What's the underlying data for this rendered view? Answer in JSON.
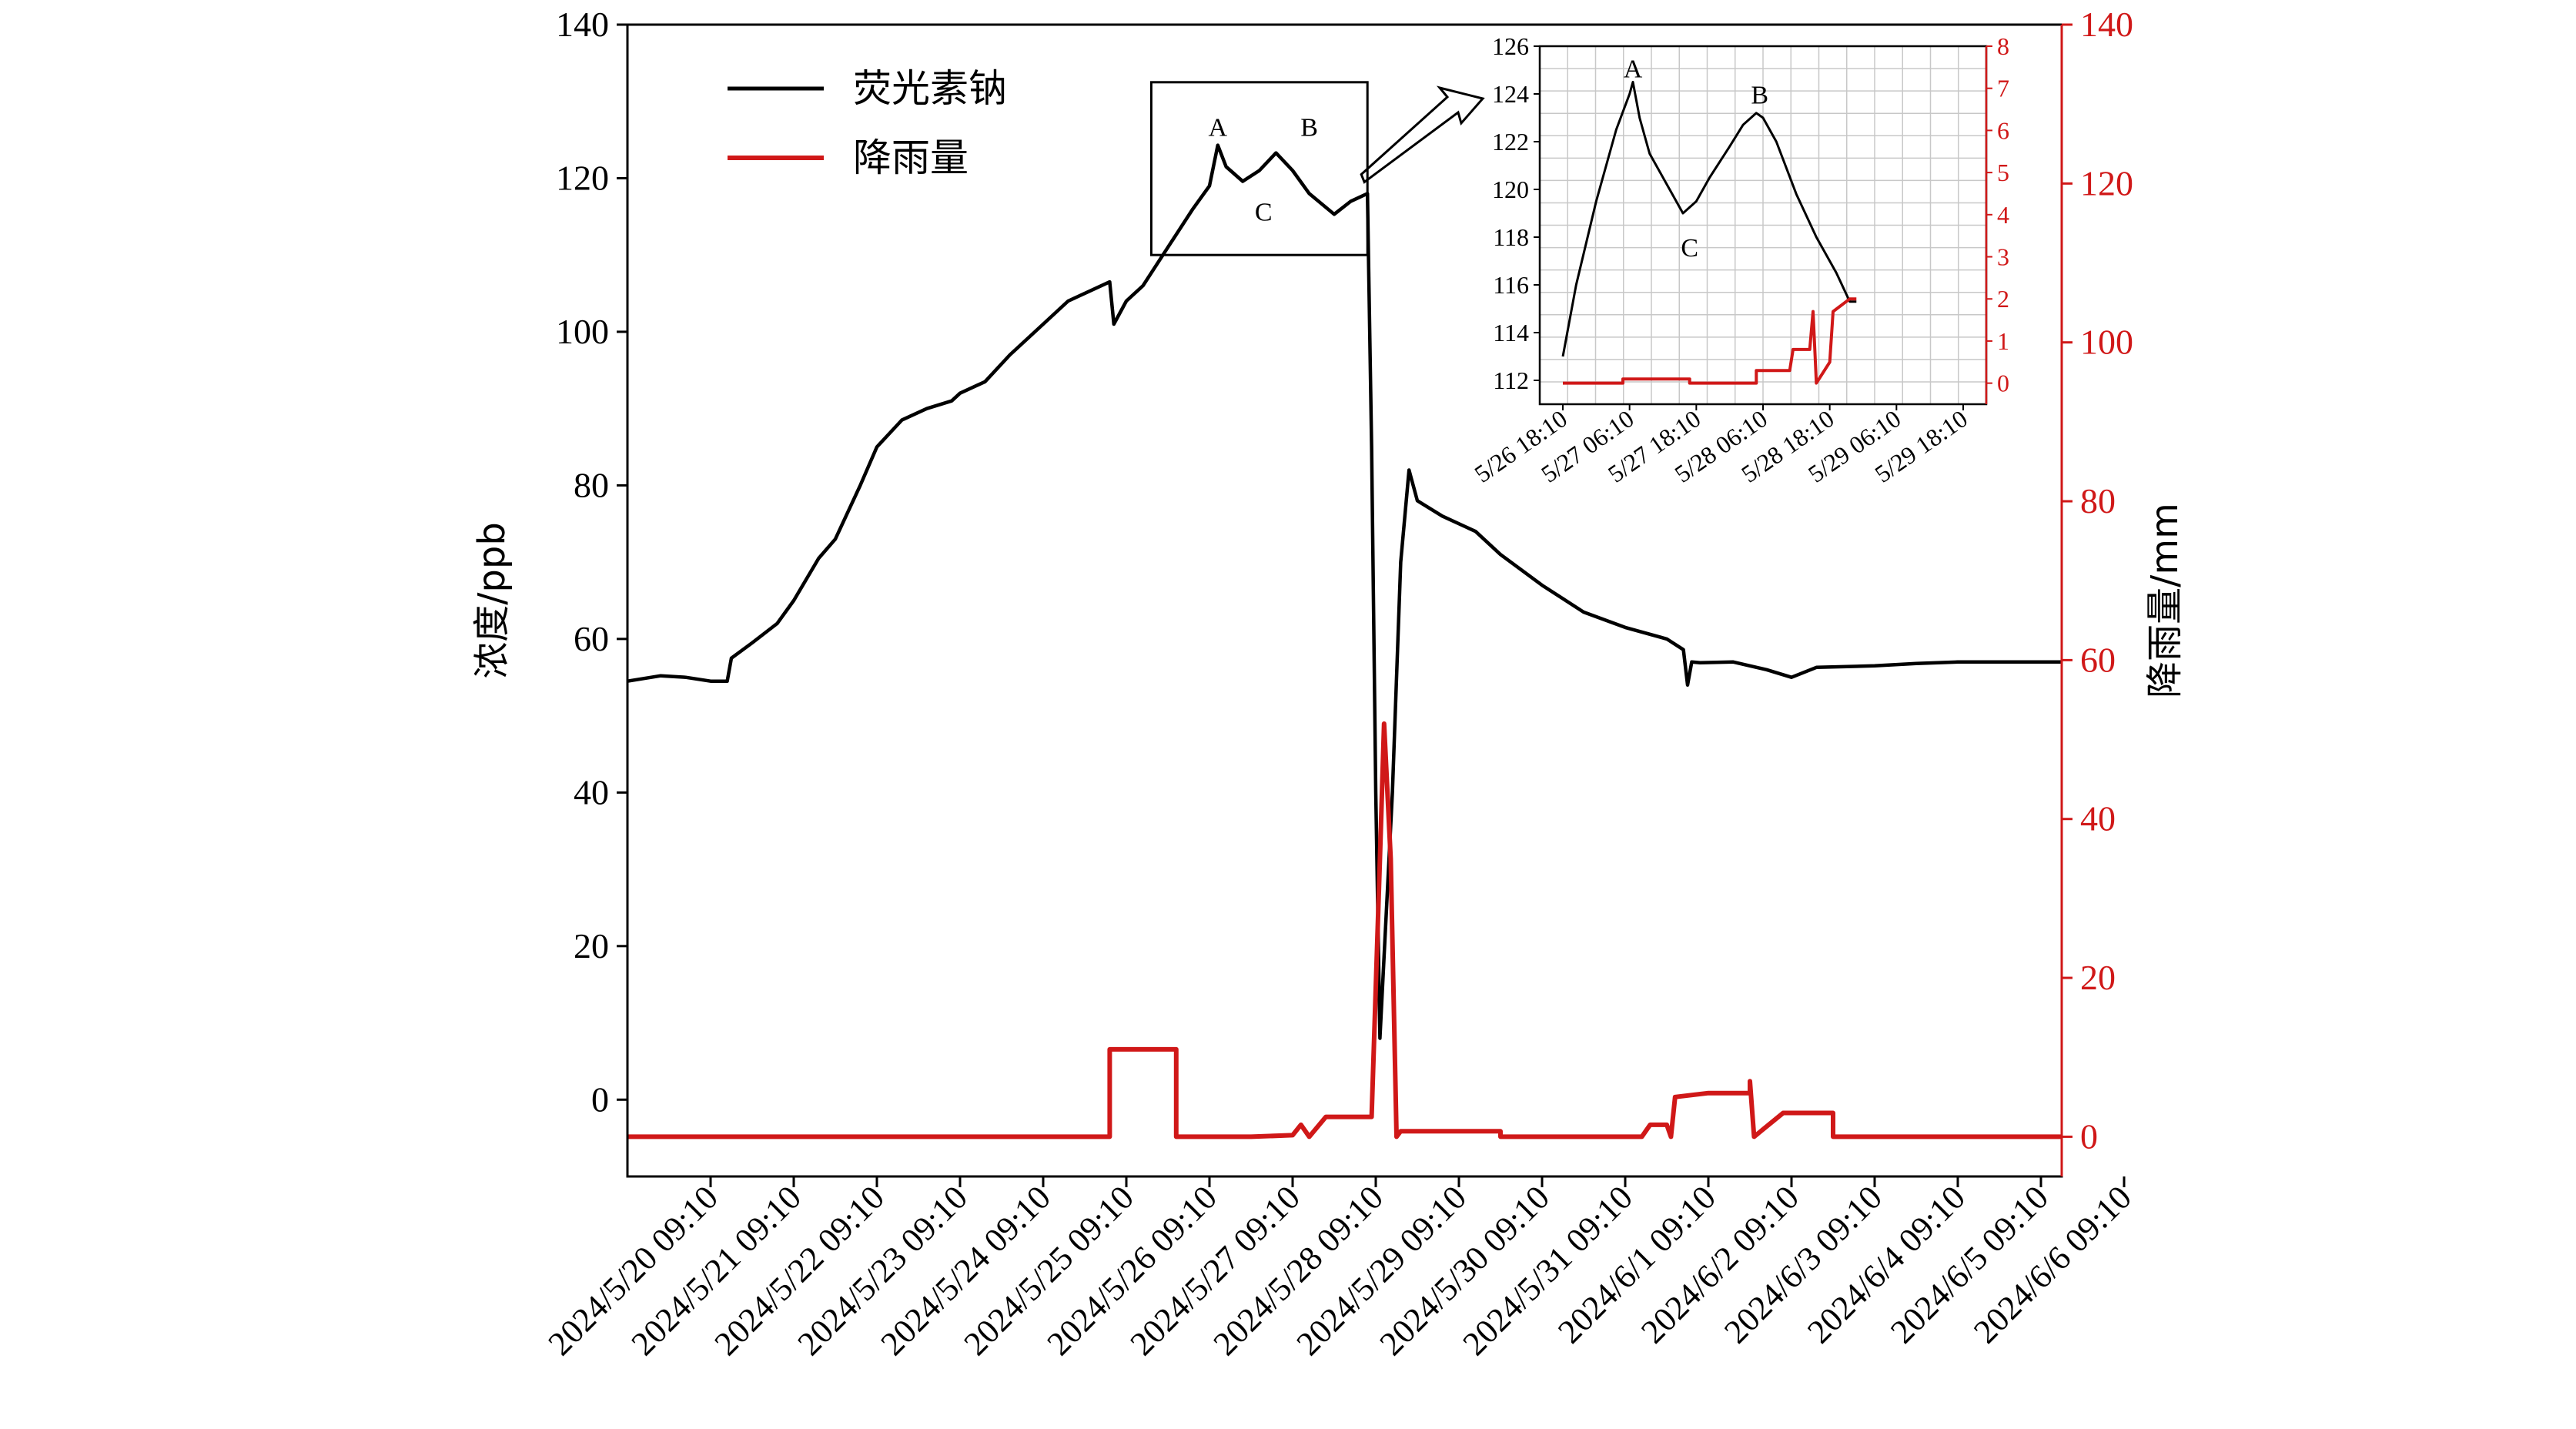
{
  "chart_data": [
    {
      "type": "line",
      "x_ticks": [
        "2024/5/20 09:10",
        "2024/5/21 09:10",
        "2024/5/22 09:10",
        "2024/5/23 09:10",
        "2024/5/24 09:10",
        "2024/5/25 09:10",
        "2024/5/26 09:10",
        "2024/5/27 09:10",
        "2024/5/28 09:10",
        "2024/5/29 09:10",
        "2024/5/30 09:10",
        "2024/5/31 09:10",
        "2024/6/1 09:10",
        "2024/6/2 09:10",
        "2024/6/3 09:10",
        "2024/6/4 09:10",
        "2024/6/5 09:10",
        "2024/6/6 09:10"
      ],
      "xlim_days": [
        -1.0,
        16.25
      ],
      "ylabel": "浓度/ppb",
      "ylabel_right": "降雨量/mm",
      "ylim": [
        -10,
        140
      ],
      "yticks": [
        0,
        20,
        40,
        60,
        80,
        100,
        120,
        140
      ],
      "ylim_right": [
        -5,
        140
      ],
      "yticks_right": [
        0,
        20,
        40,
        60,
        80,
        100,
        120,
        140
      ],
      "legend": "top-left",
      "series": [
        {
          "name": "荧光素钠",
          "color": "#000000",
          "axis": "left",
          "points": [
            [
              -1.0,
              54.5
            ],
            [
              -0.6,
              55.2
            ],
            [
              -0.3,
              55.0
            ],
            [
              0.0,
              54.5
            ],
            [
              0.2,
              54.5
            ],
            [
              0.25,
              57.5
            ],
            [
              0.5,
              59.5
            ],
            [
              0.8,
              62
            ],
            [
              1.0,
              65
            ],
            [
              1.3,
              70.5
            ],
            [
              1.5,
              73
            ],
            [
              1.8,
              80
            ],
            [
              2.0,
              85
            ],
            [
              2.3,
              88.5
            ],
            [
              2.6,
              90
            ],
            [
              2.9,
              91
            ],
            [
              3.0,
              92
            ],
            [
              3.3,
              93.5
            ],
            [
              3.6,
              97
            ],
            [
              4.0,
              101
            ],
            [
              4.3,
              104
            ],
            [
              4.8,
              106.5
            ],
            [
              4.85,
              101
            ],
            [
              5.0,
              104
            ],
            [
              5.2,
              106
            ],
            [
              5.5,
              111
            ],
            [
              5.8,
              116
            ],
            [
              6.0,
              119
            ],
            [
              6.1,
              124.3
            ],
            [
              6.2,
              121.5
            ],
            [
              6.4,
              119.6
            ],
            [
              6.6,
              121
            ],
            [
              6.8,
              123.3
            ],
            [
              7.0,
              121
            ],
            [
              7.2,
              118
            ],
            [
              7.5,
              115.3
            ],
            [
              7.7,
              117
            ],
            [
              7.9,
              118
            ],
            [
              7.95,
              85
            ],
            [
              8.0,
              40
            ],
            [
              8.05,
              8
            ],
            [
              8.2,
              40
            ],
            [
              8.3,
              70
            ],
            [
              8.4,
              82
            ],
            [
              8.5,
              78
            ],
            [
              8.8,
              76
            ],
            [
              9.2,
              74
            ],
            [
              9.5,
              71
            ],
            [
              10.0,
              67
            ],
            [
              10.5,
              63.5
            ],
            [
              11.0,
              61.5
            ],
            [
              11.5,
              60
            ],
            [
              11.7,
              58.6
            ],
            [
              11.75,
              54
            ],
            [
              11.8,
              57
            ],
            [
              11.9,
              56.9
            ],
            [
              12.3,
              57
            ],
            [
              12.7,
              56
            ],
            [
              13.0,
              55
            ],
            [
              13.3,
              56.3
            ],
            [
              14.0,
              56.5
            ],
            [
              14.5,
              56.8
            ],
            [
              15.0,
              57
            ],
            [
              15.5,
              57
            ],
            [
              16.25,
              57
            ]
          ]
        },
        {
          "name": "降雨量",
          "color": "#d01818",
          "axis": "right",
          "points": [
            [
              -1.0,
              0
            ],
            [
              4.8,
              0
            ],
            [
              4.8,
              11
            ],
            [
              5.6,
              11
            ],
            [
              5.6,
              0
            ],
            [
              6.5,
              0
            ],
            [
              7.0,
              0.2
            ],
            [
              7.1,
              1.5
            ],
            [
              7.2,
              0
            ],
            [
              7.4,
              2.5
            ],
            [
              7.95,
              2.5
            ],
            [
              8.05,
              35
            ],
            [
              8.1,
              52
            ],
            [
              8.18,
              35
            ],
            [
              8.25,
              0
            ],
            [
              8.3,
              0.7
            ],
            [
              9.5,
              0.7
            ],
            [
              9.5,
              0
            ],
            [
              11.2,
              0
            ],
            [
              11.3,
              1.5
            ],
            [
              11.5,
              1.5
            ],
            [
              11.55,
              0
            ],
            [
              11.6,
              5
            ],
            [
              12.0,
              5.5
            ],
            [
              12.5,
              5.5
            ],
            [
              12.5,
              7
            ],
            [
              12.55,
              0
            ],
            [
              12.9,
              3
            ],
            [
              13.5,
              3
            ],
            [
              13.5,
              0
            ],
            [
              16.25,
              0
            ]
          ]
        }
      ],
      "box_labels": [
        "A",
        "B",
        "C"
      ]
    },
    {
      "type": "line",
      "x_ticks": [
        "5/26 18:10",
        "5/27 06:10",
        "5/27 18:10",
        "5/28 06:10",
        "5/28 18:10",
        "5/29 06:10",
        "5/29 18:10"
      ],
      "ylim": [
        111,
        126
      ],
      "yticks": [
        112,
        114,
        116,
        118,
        120,
        122,
        124,
        126
      ],
      "ylim_right": [
        -0.5,
        8
      ],
      "yticks_right": [
        0,
        1,
        2,
        3,
        4,
        5,
        6,
        7,
        8
      ],
      "grid": true,
      "series": [
        {
          "color": "#000000",
          "axis": "left",
          "points": [
            [
              0.0,
              113
            ],
            [
              0.2,
              116
            ],
            [
              0.5,
              119.5
            ],
            [
              0.8,
              122.5
            ],
            [
              1.0,
              124
            ],
            [
              1.05,
              124.5
            ],
            [
              1.15,
              123
            ],
            [
              1.3,
              121.5
            ],
            [
              1.6,
              120
            ],
            [
              1.8,
              119
            ],
            [
              2.0,
              119.5
            ],
            [
              2.2,
              120.5
            ],
            [
              2.5,
              121.8
            ],
            [
              2.7,
              122.7
            ],
            [
              2.9,
              123.2
            ],
            [
              3.0,
              123
            ],
            [
              3.2,
              122
            ],
            [
              3.5,
              119.8
            ],
            [
              3.8,
              118
            ],
            [
              4.1,
              116.5
            ],
            [
              4.3,
              115.3
            ],
            [
              4.4,
              115.3
            ]
          ]
        },
        {
          "color": "#d01818",
          "axis": "right",
          "points": [
            [
              0.0,
              0
            ],
            [
              0.9,
              0
            ],
            [
              0.9,
              0.1
            ],
            [
              1.9,
              0.1
            ],
            [
              1.9,
              0
            ],
            [
              2.9,
              0
            ],
            [
              2.9,
              0.3
            ],
            [
              3.4,
              0.3
            ],
            [
              3.45,
              0.8
            ],
            [
              3.7,
              0.8
            ],
            [
              3.75,
              1.7
            ],
            [
              3.8,
              0
            ],
            [
              4.0,
              0.5
            ],
            [
              4.05,
              1.7
            ],
            [
              4.3,
              2.0
            ],
            [
              4.4,
              2.0
            ]
          ]
        }
      ],
      "labels": [
        "A",
        "B",
        "C"
      ]
    }
  ]
}
